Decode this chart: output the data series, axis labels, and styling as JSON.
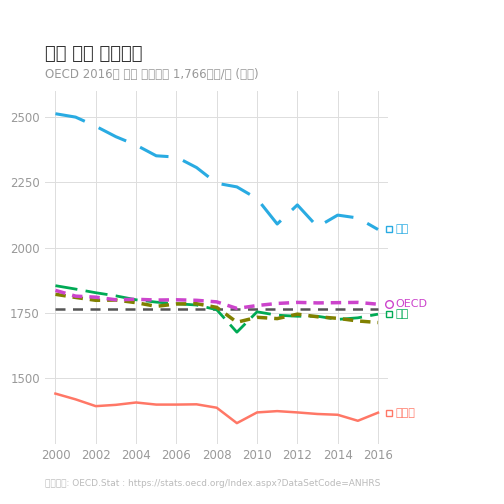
{
  "title": "연간 평균 노동시간",
  "subtitle": "OECD 2016년 평균 노동시간 1,766시간/년 (점선)",
  "source": "자료출처: OECD.Stat : https://stats.oecd.org/Index.aspx?DataSetCode=ANHRS",
  "years": [
    2000,
    2001,
    2002,
    2003,
    2004,
    2005,
    2006,
    2007,
    2008,
    2009,
    2010,
    2011,
    2012,
    2013,
    2014,
    2015,
    2016
  ],
  "korea": [
    2512,
    2499,
    2464,
    2424,
    2392,
    2351,
    2346,
    2306,
    2246,
    2232,
    2187,
    2090,
    2163,
    2079,
    2124,
    2113,
    2069
  ],
  "japan": [
    1821,
    1809,
    1798,
    1799,
    1789,
    1775,
    1784,
    1785,
    1771,
    1714,
    1733,
    1728,
    1745,
    1735,
    1729,
    1719,
    1713
  ],
  "usa": [
    1836,
    1814,
    1810,
    1800,
    1802,
    1799,
    1800,
    1798,
    1792,
    1767,
    1778,
    1786,
    1790,
    1788,
    1789,
    1790,
    1783
  ],
  "oecd_avg": [
    1766,
    1766,
    1766,
    1766,
    1766,
    1766,
    1766,
    1766,
    1766,
    1766,
    1766,
    1766,
    1766,
    1766,
    1766,
    1766,
    1766
  ],
  "germany": [
    1854,
    1841,
    1827,
    1815,
    1800,
    1791,
    1785,
    1780,
    1762,
    1676,
    1754,
    1741,
    1737,
    1737,
    1725,
    1731,
    1745
  ],
  "france": [
    1441,
    1419,
    1393,
    1398,
    1407,
    1399,
    1399,
    1400,
    1387,
    1328,
    1369,
    1374,
    1369,
    1363,
    1360,
    1337,
    1368
  ],
  "korea_color": "#29ABE2",
  "japan_color": "#808000",
  "usa_color": "#CC44CC",
  "oecd_color": "#555555",
  "germany_color": "#00AA55",
  "france_color": "#FF7766",
  "korea_label": "한국",
  "usa_label": "OECD",
  "germany_label": "독일",
  "france_label": "프랑스",
  "xlim": [
    1999.5,
    2016.5
  ],
  "ylim": [
    1250,
    2600
  ],
  "yticks": [
    1500,
    1750,
    2000,
    2250,
    2500
  ],
  "xticks": [
    2000,
    2002,
    2004,
    2006,
    2008,
    2010,
    2012,
    2014,
    2016
  ],
  "background_color": "#FFFFFF",
  "grid_color": "#DDDDDD"
}
